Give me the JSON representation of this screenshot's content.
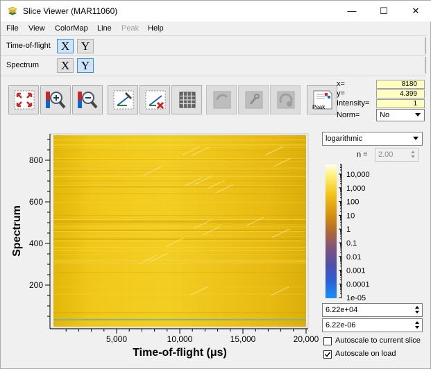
{
  "window": {
    "title": "Slice Viewer (MAR11060)",
    "minimize_glyph": "—",
    "maximize_glyph": "☐",
    "close_glyph": "✕"
  },
  "menu": [
    "File",
    "View",
    "ColorMap",
    "Line",
    "Peak",
    "Help"
  ],
  "dimensions": [
    {
      "label": "Time-of-flight",
      "x": "X",
      "y": "Y",
      "selected": "X"
    },
    {
      "label": "Spectrum",
      "x": "X",
      "y": "Y",
      "selected": "Y"
    }
  ],
  "toolbar": {
    "peak_label": "Peak",
    "icons": [
      "zoom-fit-icon",
      "zoom-in-icon",
      "zoom-out-icon",
      "line-cut-icon",
      "clear-line-icon",
      "grid-icon",
      "rebin-icon",
      "rebin-refresh-icon",
      "rebin-auto-icon",
      "peak-overlay-icon"
    ]
  },
  "info": {
    "x_label": "x=",
    "x_value": "8180",
    "y_label": "y=",
    "y_value": "4.399",
    "intensity_label": "Intensity=",
    "intensity_value": "1",
    "norm_label": "Norm=",
    "norm_value": "No"
  },
  "colorbar": {
    "scale": "logarithmic",
    "n_label": "n =",
    "n_value": "2.00",
    "ticks": [
      "10,000",
      "1,000",
      "100",
      "10",
      "1",
      "0.1",
      "0.01",
      "0.001",
      "0.0001",
      "1e-05"
    ],
    "max_value": "6.22e+04",
    "min_value": "6.22e-06",
    "autoscale_slice_label": "Autoscale to current slice",
    "autoscale_slice_checked": false,
    "autoscale_load_label": "Autoscale on load",
    "autoscale_load_checked": true
  },
  "plot": {
    "ylabel": "Spectrum",
    "xlabel": "Time-of-flight (μs)",
    "xticks": [
      "5,000",
      "10,000",
      "15,000",
      "20,000"
    ],
    "yticks": [
      "200",
      "400",
      "600",
      "800"
    ]
  }
}
